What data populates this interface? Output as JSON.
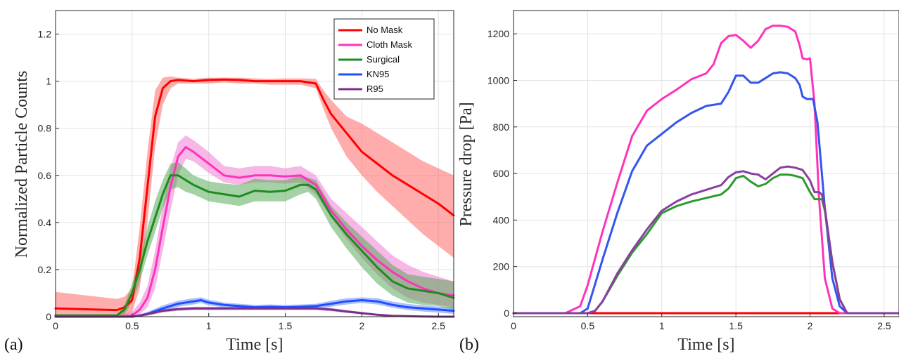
{
  "chart_data": [
    {
      "type": "line",
      "panel_label": "(a)",
      "xlabel": "Time [s]",
      "ylabel": "Normalized Particle Counts",
      "xlim": [
        0,
        2.6
      ],
      "ylim": [
        0,
        1.3
      ],
      "xticks": [
        0,
        0.5,
        1,
        1.5,
        2,
        2.5
      ],
      "xtick_labels": [
        "0",
        "0.5",
        "1",
        "1.5",
        "2",
        "2.5"
      ],
      "yticks": [
        0,
        0.2,
        0.4,
        0.6,
        0.8,
        1,
        1.2
      ],
      "ytick_labels": [
        "0",
        "0.2",
        "0.4",
        "0.6",
        "0.8",
        "1",
        "1.2"
      ],
      "grid": true,
      "legend_position": "top-right",
      "series": [
        {
          "name": "No Mask",
          "color": "#ff0000",
          "band_color": "#ff5a5a",
          "x": [
            0,
            0.4,
            0.45,
            0.5,
            0.55,
            0.6,
            0.65,
            0.7,
            0.75,
            0.8,
            0.9,
            1.0,
            1.1,
            1.2,
            1.3,
            1.4,
            1.5,
            1.6,
            1.7,
            1.75,
            1.8,
            1.9,
            2.0,
            2.1,
            2.2,
            2.3,
            2.4,
            2.5,
            2.6
          ],
          "y": [
            0.035,
            0.028,
            0.04,
            0.07,
            0.25,
            0.55,
            0.85,
            0.97,
            1.0,
            1.005,
            1.0,
            1.005,
            1.007,
            1.005,
            1.0,
            1.0,
            1.0,
            1.0,
            0.99,
            0.92,
            0.86,
            0.78,
            0.7,
            0.65,
            0.6,
            0.56,
            0.52,
            0.48,
            0.43
          ],
          "lower": [
            0.0,
            0.0,
            0.0,
            0.02,
            0.12,
            0.4,
            0.72,
            0.9,
            0.97,
            0.99,
            0.99,
            0.99,
            0.995,
            0.99,
            0.99,
            0.985,
            0.985,
            0.985,
            0.97,
            0.88,
            0.8,
            0.68,
            0.6,
            0.53,
            0.47,
            0.41,
            0.35,
            0.3,
            0.25
          ],
          "upper": [
            0.105,
            0.075,
            0.085,
            0.12,
            0.38,
            0.7,
            0.96,
            1.015,
            1.02,
            1.015,
            1.01,
            1.015,
            1.015,
            1.015,
            1.012,
            1.01,
            1.012,
            1.012,
            1.01,
            0.96,
            0.92,
            0.85,
            0.82,
            0.78,
            0.74,
            0.7,
            0.66,
            0.63,
            0.6
          ]
        },
        {
          "name": "Cloth Mask",
          "color": "#ff33bb",
          "band_color": "#f070d0",
          "x": [
            0,
            0.4,
            0.5,
            0.55,
            0.6,
            0.65,
            0.7,
            0.75,
            0.8,
            0.85,
            0.9,
            1.0,
            1.1,
            1.2,
            1.3,
            1.4,
            1.5,
            1.6,
            1.7,
            1.8,
            1.9,
            2.0,
            2.1,
            2.2,
            2.3,
            2.4,
            2.5,
            2.6
          ],
          "y": [
            0.0,
            0.0,
            0.005,
            0.03,
            0.08,
            0.2,
            0.38,
            0.55,
            0.68,
            0.72,
            0.7,
            0.65,
            0.6,
            0.59,
            0.6,
            0.6,
            0.595,
            0.6,
            0.56,
            0.45,
            0.37,
            0.3,
            0.24,
            0.19,
            0.15,
            0.12,
            0.1,
            0.09
          ],
          "lower": [
            0.0,
            0.0,
            0.0,
            0.01,
            0.04,
            0.12,
            0.28,
            0.45,
            0.6,
            0.67,
            0.66,
            0.61,
            0.57,
            0.56,
            0.57,
            0.57,
            0.565,
            0.57,
            0.52,
            0.42,
            0.33,
            0.25,
            0.18,
            0.12,
            0.08,
            0.06,
            0.05,
            0.04
          ],
          "upper": [
            0.005,
            0.005,
            0.02,
            0.06,
            0.13,
            0.28,
            0.47,
            0.63,
            0.74,
            0.77,
            0.75,
            0.7,
            0.64,
            0.63,
            0.64,
            0.64,
            0.63,
            0.64,
            0.6,
            0.5,
            0.44,
            0.38,
            0.32,
            0.26,
            0.22,
            0.19,
            0.17,
            0.15
          ]
        },
        {
          "name": "Surgical",
          "color": "#1f8a1f",
          "band_color": "#4ca64c",
          "x": [
            0,
            0.4,
            0.45,
            0.5,
            0.55,
            0.6,
            0.65,
            0.7,
            0.75,
            0.8,
            0.85,
            0.9,
            1.0,
            1.1,
            1.2,
            1.3,
            1.4,
            1.5,
            1.6,
            1.65,
            1.7,
            1.8,
            1.9,
            2.0,
            2.1,
            2.2,
            2.3,
            2.4,
            2.5,
            2.6
          ],
          "y": [
            0.005,
            0.005,
            0.03,
            0.1,
            0.2,
            0.32,
            0.42,
            0.52,
            0.6,
            0.6,
            0.58,
            0.56,
            0.53,
            0.52,
            0.51,
            0.535,
            0.53,
            0.535,
            0.56,
            0.56,
            0.54,
            0.43,
            0.35,
            0.28,
            0.21,
            0.15,
            0.12,
            0.11,
            0.1,
            0.08
          ],
          "lower": [
            0.0,
            0.0,
            0.01,
            0.06,
            0.15,
            0.26,
            0.36,
            0.46,
            0.54,
            0.55,
            0.53,
            0.52,
            0.49,
            0.48,
            0.47,
            0.49,
            0.49,
            0.49,
            0.52,
            0.53,
            0.5,
            0.38,
            0.29,
            0.21,
            0.14,
            0.09,
            0.06,
            0.05,
            0.045,
            0.03
          ],
          "upper": [
            0.01,
            0.01,
            0.05,
            0.14,
            0.25,
            0.38,
            0.49,
            0.58,
            0.65,
            0.655,
            0.63,
            0.6,
            0.575,
            0.565,
            0.56,
            0.585,
            0.58,
            0.58,
            0.6,
            0.59,
            0.58,
            0.47,
            0.4,
            0.34,
            0.28,
            0.22,
            0.18,
            0.17,
            0.16,
            0.15
          ]
        },
        {
          "name": "KN95",
          "color": "#1f4fff",
          "band_color": "#5b80ff",
          "x": [
            0,
            0.5,
            0.55,
            0.6,
            0.7,
            0.8,
            0.9,
            0.95,
            1.0,
            1.1,
            1.2,
            1.3,
            1.4,
            1.5,
            1.6,
            1.7,
            1.8,
            1.9,
            2.0,
            2.1,
            2.2,
            2.3,
            2.4,
            2.5,
            2.6
          ],
          "y": [
            0.0,
            0.0,
            0.005,
            0.012,
            0.035,
            0.055,
            0.065,
            0.07,
            0.06,
            0.05,
            0.045,
            0.04,
            0.042,
            0.04,
            0.042,
            0.045,
            0.055,
            0.065,
            0.07,
            0.065,
            0.05,
            0.04,
            0.035,
            0.03,
            0.025
          ],
          "lower": [
            0.0,
            0.0,
            0.0,
            0.005,
            0.022,
            0.042,
            0.052,
            0.058,
            0.048,
            0.04,
            0.035,
            0.032,
            0.033,
            0.032,
            0.033,
            0.035,
            0.042,
            0.052,
            0.058,
            0.052,
            0.038,
            0.028,
            0.022,
            0.017,
            0.012
          ],
          "upper": [
            0.0,
            0.005,
            0.01,
            0.02,
            0.048,
            0.068,
            0.078,
            0.082,
            0.072,
            0.06,
            0.055,
            0.05,
            0.052,
            0.05,
            0.052,
            0.055,
            0.068,
            0.078,
            0.082,
            0.078,
            0.064,
            0.054,
            0.048,
            0.043,
            0.04
          ]
        },
        {
          "name": "R95",
          "color": "#7e2f8e",
          "band_color": "#a060ae",
          "x": [
            0,
            0.5,
            0.6,
            0.7,
            0.8,
            0.9,
            1.0,
            1.2,
            1.4,
            1.5,
            1.6,
            1.7,
            1.8,
            1.9,
            2.0,
            2.1,
            2.2,
            2.3,
            2.4,
            2.5,
            2.6
          ],
          "y": [
            0.0,
            0.0,
            0.01,
            0.025,
            0.032,
            0.035,
            0.035,
            0.035,
            0.035,
            0.035,
            0.035,
            0.035,
            0.03,
            0.022,
            0.015,
            0.008,
            0.004,
            0.002,
            0.001,
            0.0,
            0.0
          ],
          "lower": [
            0.0,
            0.0,
            0.005,
            0.018,
            0.025,
            0.028,
            0.028,
            0.028,
            0.028,
            0.028,
            0.028,
            0.028,
            0.023,
            0.016,
            0.01,
            0.004,
            0.001,
            0.0,
            0.0,
            0.0,
            0.0
          ],
          "upper": [
            0.0,
            0.002,
            0.015,
            0.032,
            0.039,
            0.042,
            0.042,
            0.042,
            0.042,
            0.042,
            0.042,
            0.042,
            0.037,
            0.028,
            0.02,
            0.012,
            0.007,
            0.004,
            0.002,
            0.001,
            0.001
          ]
        }
      ]
    },
    {
      "type": "line",
      "panel_label": "(b)",
      "xlabel": "Time [s]",
      "ylabel": "Pressure drop [Pa]",
      "xlim": [
        0,
        2.6
      ],
      "ylim": [
        -15,
        1300
      ],
      "xticks": [
        0,
        0.5,
        1,
        1.5,
        2,
        2.5
      ],
      "xtick_labels": [
        "0",
        "0.5",
        "1",
        "1.5",
        "2",
        "2.5"
      ],
      "yticks": [
        0,
        200,
        400,
        600,
        800,
        1000,
        1200
      ],
      "ytick_labels": [
        "0",
        "200",
        "400",
        "600",
        "800",
        "1000",
        "1200"
      ],
      "grid": true,
      "series": [
        {
          "color": "#ff0000",
          "x": [
            0,
            2.6
          ],
          "y": [
            0,
            0
          ]
        },
        {
          "color": "#ff33bb",
          "x": [
            0,
            0.35,
            0.45,
            0.5,
            0.6,
            0.7,
            0.8,
            0.9,
            1.0,
            1.1,
            1.2,
            1.3,
            1.35,
            1.4,
            1.45,
            1.5,
            1.55,
            1.6,
            1.65,
            1.7,
            1.75,
            1.8,
            1.85,
            1.9,
            1.93,
            1.95,
            1.98,
            2.0,
            2.03,
            2.06,
            2.1,
            2.15,
            2.2,
            2.6
          ],
          "y": [
            0,
            0,
            30,
            120,
            350,
            560,
            760,
            870,
            920,
            960,
            1005,
            1030,
            1070,
            1160,
            1190,
            1195,
            1170,
            1140,
            1170,
            1220,
            1235,
            1235,
            1230,
            1210,
            1150,
            1095,
            1090,
            1095,
            900,
            500,
            150,
            20,
            0,
            0
          ]
        },
        {
          "color": "#3355ee",
          "x": [
            0,
            0.45,
            0.5,
            0.6,
            0.7,
            0.8,
            0.9,
            1.0,
            1.1,
            1.2,
            1.3,
            1.4,
            1.45,
            1.5,
            1.55,
            1.6,
            1.65,
            1.7,
            1.75,
            1.8,
            1.85,
            1.9,
            1.93,
            1.95,
            1.98,
            2.02,
            2.05,
            2.1,
            2.15,
            2.2,
            2.25,
            2.6
          ],
          "y": [
            0,
            0,
            20,
            230,
            430,
            610,
            720,
            770,
            820,
            860,
            890,
            900,
            950,
            1020,
            1020,
            990,
            990,
            1010,
            1030,
            1035,
            1030,
            1010,
            980,
            930,
            920,
            920,
            820,
            450,
            150,
            30,
            0,
            0
          ]
        },
        {
          "color": "#2e9a2e",
          "x": [
            0,
            0.5,
            0.55,
            0.6,
            0.7,
            0.8,
            0.9,
            1.0,
            1.1,
            1.2,
            1.3,
            1.4,
            1.45,
            1.5,
            1.55,
            1.6,
            1.65,
            1.7,
            1.75,
            1.8,
            1.85,
            1.9,
            1.95,
            2.0,
            2.03,
            2.05,
            2.08,
            2.1,
            2.15,
            2.2,
            2.25,
            2.6
          ],
          "y": [
            0,
            0,
            10,
            50,
            160,
            260,
            340,
            430,
            460,
            480,
            495,
            510,
            535,
            580,
            590,
            565,
            545,
            555,
            580,
            595,
            595,
            590,
            580,
            520,
            490,
            490,
            490,
            440,
            220,
            60,
            0,
            0
          ]
        },
        {
          "color": "#8a3fa0",
          "x": [
            0,
            0.5,
            0.55,
            0.6,
            0.7,
            0.8,
            0.9,
            1.0,
            1.1,
            1.2,
            1.3,
            1.4,
            1.45,
            1.5,
            1.55,
            1.6,
            1.65,
            1.7,
            1.75,
            1.8,
            1.85,
            1.9,
            1.95,
            2.0,
            2.03,
            2.06,
            2.08,
            2.1,
            2.15,
            2.2,
            2.25,
            2.6
          ],
          "y": [
            0,
            0,
            10,
            50,
            170,
            270,
            360,
            440,
            480,
            510,
            530,
            550,
            585,
            605,
            610,
            600,
            595,
            575,
            600,
            625,
            630,
            625,
            615,
            570,
            520,
            520,
            510,
            450,
            220,
            60,
            0,
            0
          ]
        }
      ]
    }
  ]
}
